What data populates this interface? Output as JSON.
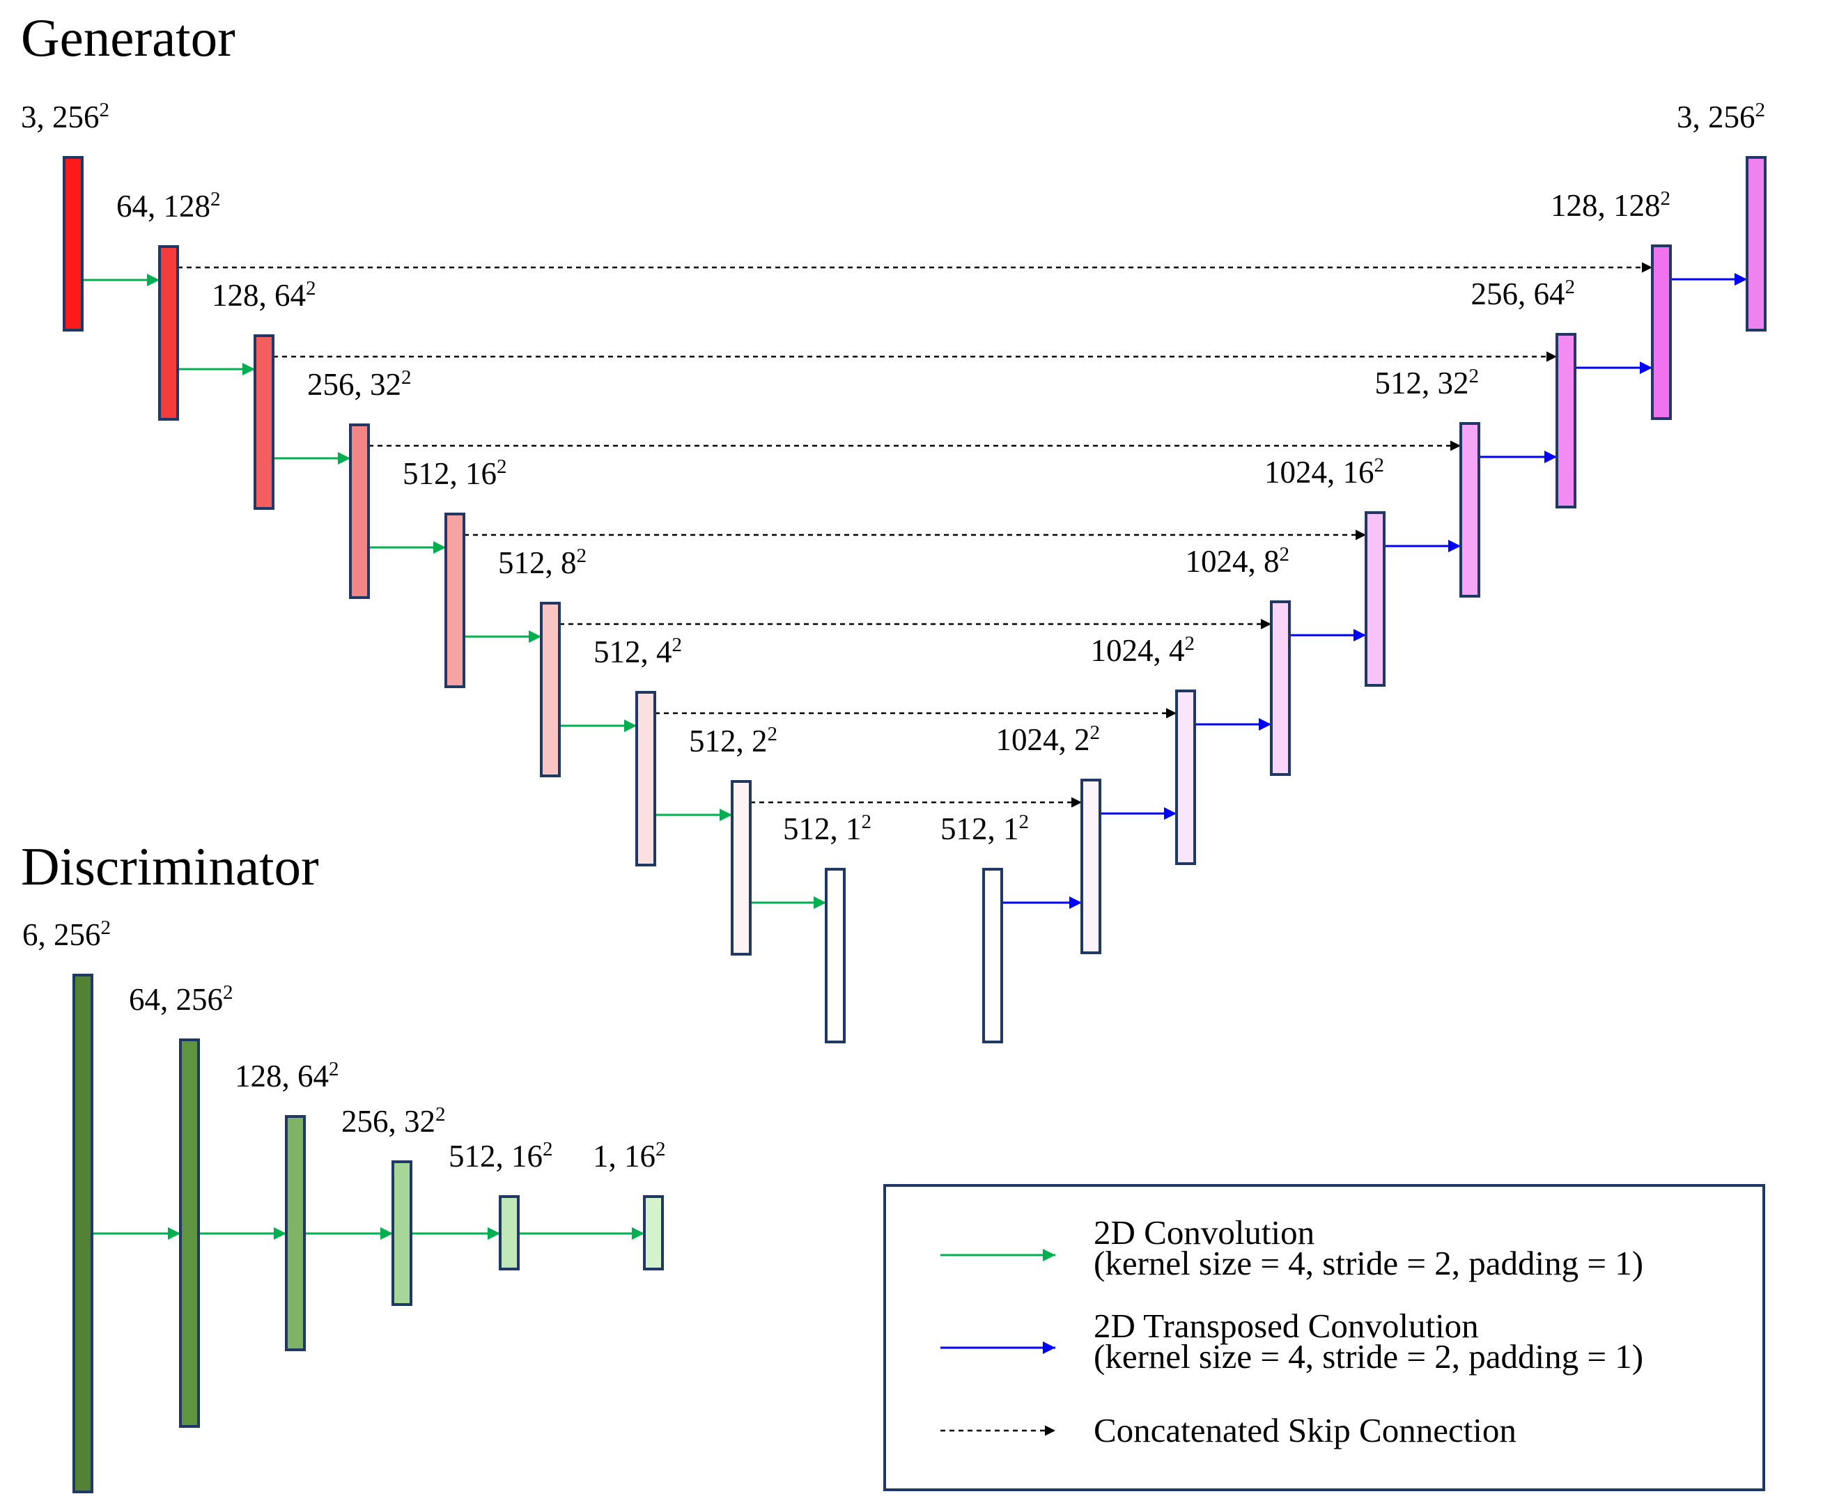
{
  "generator": {
    "title": "Generator",
    "encoder": [
      {
        "label": "3, 256",
        "sup": "2",
        "color": "#ff1a1a"
      },
      {
        "label": "64, 128",
        "sup": "2",
        "color": "#f43c3c"
      },
      {
        "label": "128, 64",
        "sup": "2",
        "color": "#f45e5e"
      },
      {
        "label": "256, 32",
        "sup": "2",
        "color": "#f28585"
      },
      {
        "label": "512, 16",
        "sup": "2",
        "color": "#f5a3a3"
      },
      {
        "label": "512, 8",
        "sup": "2",
        "color": "#f8c4c4"
      },
      {
        "label": "512, 4",
        "sup": "2",
        "color": "#fbe0e0"
      },
      {
        "label": "512, 2",
        "sup": "2",
        "color": "#fef3f3"
      },
      {
        "label": "512, 1",
        "sup": "2",
        "color": "#ffffff"
      }
    ],
    "decoder": [
      {
        "label": "512, 1",
        "sup": "2",
        "color": "#ffffff"
      },
      {
        "label": "1024, 2",
        "sup": "2",
        "color": "#fcf4fc"
      },
      {
        "label": "1024, 4",
        "sup": "2",
        "color": "#fae6fa"
      },
      {
        "label": "1024, 8",
        "sup": "2",
        "color": "#f9d6f9"
      },
      {
        "label": "1024, 16",
        "sup": "2",
        "color": "#f8c2f8"
      },
      {
        "label": "512, 32",
        "sup": "2",
        "color": "#f5a7f5"
      },
      {
        "label": "256, 64",
        "sup": "2",
        "color": "#f28cf2"
      },
      {
        "label": "128, 128",
        "sup": "2",
        "color": "#ef72ef"
      },
      {
        "label": "3, 256",
        "sup": "2",
        "color": "#ee82ee"
      }
    ]
  },
  "discriminator": {
    "title": "Discriminator",
    "blocks": [
      {
        "label": "6, 256",
        "sup": "2",
        "color": "#548235"
      },
      {
        "label": "64, 256",
        "sup": "2",
        "color": "#5f9440"
      },
      {
        "label": "128, 64",
        "sup": "2",
        "color": "#81b367"
      },
      {
        "label": "256, 32",
        "sup": "2",
        "color": "#a6d69a"
      },
      {
        "label": "512, 16",
        "sup": "2",
        "color": "#c1e8b8"
      },
      {
        "label": "1, 16",
        "sup": "2",
        "color": "#d4f2cc"
      }
    ]
  },
  "legend": {
    "items": [
      {
        "kind": "conv",
        "line1": "2D Convolution",
        "line2": "(kernel size = 4, stride = 2, padding = 1)"
      },
      {
        "kind": "tconv",
        "line1": "2D Transposed Convolution",
        "line2": "(kernel size = 4, stride = 2, padding = 1)"
      },
      {
        "kind": "skip",
        "line1": "Concatenated Skip Connection",
        "line2": ""
      }
    ]
  },
  "colors": {
    "conv_arrow": "#00b050",
    "tconv_arrow": "#0000ff",
    "skip_arrow": "#000000",
    "block_border": "#1f3864",
    "legend_border": "#1f3864"
  }
}
